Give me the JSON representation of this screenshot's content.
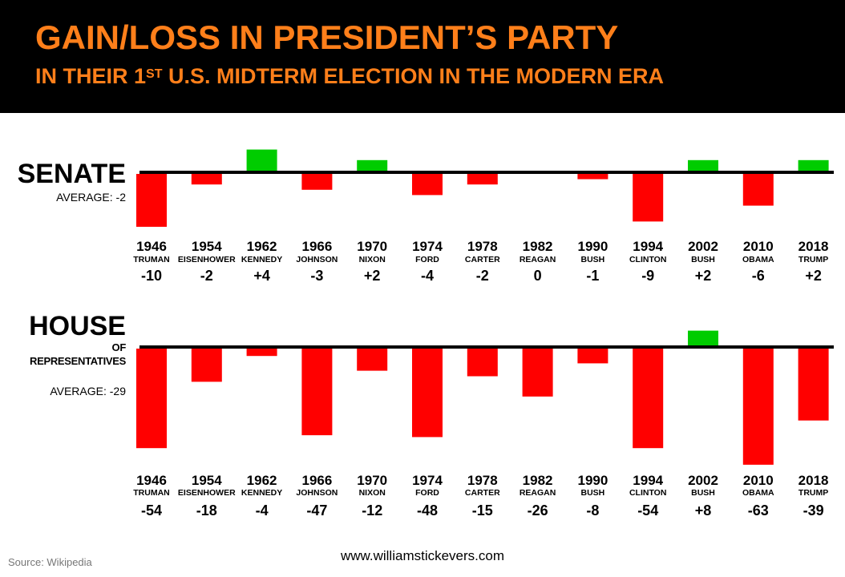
{
  "title": "GAIN/LOSS IN PRESIDENT’S PARTY",
  "subtitle_pre": "IN THEIR 1",
  "subtitle_sup": "ST",
  "subtitle_post": " U.S. MIDTERM ELECTION IN THE MODERN ERA",
  "source": "Source: Wikipedia",
  "website": "www.williamstickevers.com",
  "colors": {
    "gain": "#00cc00",
    "loss": "#ff0000",
    "accent": "#ff7f1a",
    "baseline": "#000000"
  },
  "senate": {
    "title": "SENATE",
    "average_label": "AVERAGE: -2"
  },
  "house": {
    "title": "HOUSE",
    "subtitle_line1": "OF",
    "subtitle_line2": "REPRESENTATIVES",
    "average_label": "AVERAGE: -29"
  },
  "chart_data": [
    {
      "type": "bar",
      "title": "SENATE",
      "categories": [
        "1946",
        "1954",
        "1962",
        "1966",
        "1970",
        "1974",
        "1978",
        "1982",
        "1990",
        "1994",
        "2002",
        "2010",
        "2018"
      ],
      "presidents": [
        "TRUMAN",
        "EISENHOWER",
        "KENNEDY",
        "JOHNSON",
        "NIXON",
        "FORD",
        "CARTER",
        "REAGAN",
        "BUSH",
        "CLINTON",
        "BUSH",
        "OBAMA",
        "TRUMP"
      ],
      "labels": [
        "-10",
        "-2",
        "+4",
        "-3",
        "+2",
        "-4",
        "-2",
        "0",
        "-1",
        "-9",
        "+2",
        "-6",
        "+2"
      ],
      "values": [
        -10,
        -2,
        4,
        -3,
        2,
        -4,
        -2,
        0,
        -1,
        -9,
        2,
        -6,
        2
      ],
      "ylim": [
        -10,
        4
      ]
    },
    {
      "type": "bar",
      "title": "HOUSE OF REPRESENTATIVES",
      "categories": [
        "1946",
        "1954",
        "1962",
        "1966",
        "1970",
        "1974",
        "1978",
        "1982",
        "1990",
        "1994",
        "2002",
        "2010",
        "2018"
      ],
      "presidents": [
        "TRUMAN",
        "EISENHOWER",
        "KENNEDY",
        "JOHNSON",
        "NIXON",
        "FORD",
        "CARTER",
        "REAGAN",
        "BUSH",
        "CLINTON",
        "BUSH",
        "OBAMA",
        "TRUMP"
      ],
      "labels": [
        "-54",
        "-18",
        "-4",
        "-47",
        "-12",
        "-48",
        "-15",
        "-26",
        "-8",
        "-54",
        "+8",
        "-63",
        "-39"
      ],
      "values": [
        -54,
        -18,
        -4,
        -47,
        -12,
        -48,
        -15,
        -26,
        -8,
        -54,
        8,
        -63,
        -39
      ],
      "ylim": [
        -63,
        8
      ]
    }
  ]
}
